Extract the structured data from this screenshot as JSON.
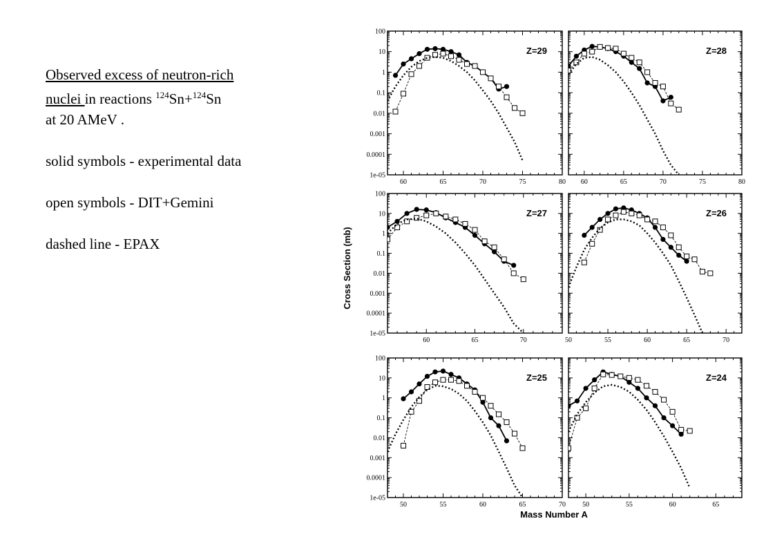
{
  "description": {
    "line1": "Observed excess of neutron-rich",
    "line2_underlined": "nuclei ",
    "line2_rest": " in reactions ",
    "iso1_mass": "124",
    "iso1_sym": "Sn+",
    "iso2_mass": "124",
    "iso2_sym": "Sn",
    "line3": "at 20 AMeV .",
    "solid": "solid symbols - experimental data",
    "open": "open symbols - DIT+Gemini",
    "dashed": "dashed line - EPAX"
  },
  "figure": {
    "ylabel": "Cross Section (mb)",
    "xlabel": "Mass Number A"
  },
  "chart_data": [
    {
      "type": "scatter",
      "label": "Z=29",
      "xlim": [
        58,
        80
      ],
      "xticks": [
        60,
        65,
        70,
        75,
        80
      ],
      "ylim_log10": [
        -5,
        2
      ],
      "yticks": [
        "100",
        "10",
        "1",
        "0.1",
        "0.01",
        "0.001",
        "0.0001",
        "1e-05"
      ],
      "series": [
        {
          "name": "experimental data",
          "style": "solid",
          "x": [
            59,
            60,
            61,
            62,
            63,
            64,
            65,
            66,
            67,
            68,
            69,
            70,
            71,
            72,
            73
          ],
          "y": [
            0.7,
            2.5,
            4.5,
            8,
            13,
            14,
            13,
            10,
            7,
            3,
            2,
            1,
            0.5,
            0.15,
            0.2
          ]
        },
        {
          "name": "DIT+Gemini",
          "style": "open",
          "x": [
            59,
            60,
            61,
            62,
            63,
            64,
            65,
            66,
            67,
            68,
            69,
            70,
            71,
            72,
            73,
            74,
            75
          ],
          "y": [
            0.012,
            0.09,
            0.8,
            2,
            5,
            7,
            8,
            6,
            4,
            2.5,
            2,
            1,
            0.5,
            0.2,
            0.06,
            0.018,
            0.01
          ]
        },
        {
          "name": "EPAX",
          "style": "dashed",
          "x": [
            58,
            59,
            60,
            61,
            62,
            63,
            64,
            65,
            66,
            67,
            68,
            69,
            70,
            71,
            72,
            73,
            74,
            75
          ],
          "y": [
            0.04,
            0.2,
            0.7,
            1.8,
            3.5,
            5,
            5.5,
            5,
            3.5,
            2,
            1,
            0.4,
            0.13,
            0.04,
            0.01,
            0.002,
            0.0004,
            5e-05
          ]
        }
      ]
    },
    {
      "type": "scatter",
      "label": "Z=28",
      "xlim": [
        58,
        80
      ],
      "xticks": [
        60,
        65,
        70,
        75,
        80
      ],
      "ylim_log10": [
        -5,
        2
      ],
      "yticks": [],
      "series": [
        {
          "name": "experimental data",
          "style": "solid",
          "x": [
            58,
            59,
            60,
            61,
            62,
            63,
            64,
            65,
            66,
            67,
            68,
            69,
            70,
            71
          ],
          "y": [
            2,
            6,
            12,
            18,
            17,
            14,
            10,
            6,
            3,
            1.5,
            0.3,
            0.2,
            0.04,
            0.06
          ]
        },
        {
          "name": "DIT+Gemini",
          "style": "open",
          "x": [
            58,
            59,
            60,
            61,
            62,
            63,
            64,
            65,
            66,
            67,
            68,
            69,
            70,
            71,
            72
          ],
          "y": [
            1.2,
            3,
            8,
            10,
            17,
            15,
            14,
            8,
            5,
            3,
            1,
            0.3,
            0.2,
            0.03,
            0.015
          ]
        },
        {
          "name": "EPAX",
          "style": "dashed",
          "x": [
            58,
            59,
            60,
            61,
            62,
            63,
            64,
            65,
            66,
            67,
            68,
            69,
            70,
            71,
            72
          ],
          "y": [
            0.8,
            2.5,
            5,
            5.5,
            4,
            2.2,
            1,
            0.35,
            0.1,
            0.025,
            0.005,
            0.001,
            0.00015,
            3e-05,
            1e-05
          ]
        }
      ]
    },
    {
      "type": "scatter",
      "label": "Z=27",
      "xlim": [
        56,
        74
      ],
      "xticks": [
        60,
        65,
        70
      ],
      "ylim_log10": [
        -5,
        2
      ],
      "yticks": [
        "100",
        "10",
        "1",
        "0.1",
        "0.01",
        "0.001",
        "0.0001",
        "1e-05"
      ],
      "series": [
        {
          "name": "experimental data",
          "style": "solid",
          "x": [
            56,
            57,
            58,
            59,
            60,
            61,
            62,
            63,
            64,
            65,
            66,
            67,
            68,
            69
          ],
          "y": [
            2,
            4,
            10,
            16,
            15,
            11,
            6,
            3.5,
            2,
            0.8,
            0.3,
            0.12,
            0.04,
            0.025
          ]
        },
        {
          "name": "DIT+Gemini",
          "style": "open",
          "x": [
            56,
            57,
            58,
            59,
            60,
            61,
            62,
            63,
            64,
            65,
            66,
            67,
            68,
            69,
            70
          ],
          "y": [
            0.5,
            2,
            4,
            6,
            8,
            10,
            7,
            5,
            3,
            1.5,
            0.4,
            0.2,
            0.05,
            0.01,
            0.005
          ]
        },
        {
          "name": "EPAX",
          "style": "dashed",
          "x": [
            56,
            57,
            58,
            59,
            60,
            61,
            62,
            63,
            64,
            65,
            66,
            67,
            68,
            69,
            70
          ],
          "y": [
            1,
            3,
            5,
            5.5,
            4,
            2.2,
            1,
            0.35,
            0.1,
            0.025,
            0.005,
            0.001,
            0.0002,
            3e-05,
            1e-05
          ]
        }
      ]
    },
    {
      "type": "scatter",
      "label": "Z=26",
      "xlim": [
        50,
        72
      ],
      "xticks": [
        50,
        55,
        60,
        65,
        70
      ],
      "ylim_log10": [
        -5,
        2
      ],
      "yticks": [],
      "series": [
        {
          "name": "experimental data",
          "style": "solid",
          "x": [
            52,
            53,
            54,
            55,
            56,
            57,
            58,
            59,
            60,
            61,
            62,
            63,
            64,
            65
          ],
          "y": [
            0.8,
            2,
            5,
            10,
            17,
            19,
            15,
            10,
            6,
            2,
            0.5,
            0.2,
            0.08,
            0.04
          ]
        },
        {
          "name": "DIT+Gemini",
          "style": "open",
          "x": [
            52,
            53,
            54,
            55,
            56,
            57,
            58,
            59,
            60,
            61,
            62,
            63,
            64,
            65,
            66,
            67,
            68
          ],
          "y": [
            0.035,
            0.3,
            1.5,
            5,
            8,
            12,
            10,
            8,
            5,
            4,
            2,
            0.8,
            0.2,
            0.07,
            0.05,
            0.012,
            0.01
          ]
        },
        {
          "name": "EPAX",
          "style": "dashed",
          "x": [
            50,
            51,
            52,
            53,
            54,
            55,
            56,
            57,
            58,
            59,
            60,
            61,
            62,
            63,
            64,
            65,
            66,
            67
          ],
          "y": [
            0.002,
            0.02,
            0.15,
            0.6,
            1.8,
            3.5,
            5,
            5,
            4,
            2.5,
            1,
            0.35,
            0.1,
            0.025,
            0.004,
            0.0006,
            8e-05,
            1e-05
          ]
        }
      ]
    },
    {
      "type": "scatter",
      "label": "Z=25",
      "xlim": [
        48,
        70
      ],
      "xticks": [
        50,
        55,
        60,
        65,
        70
      ],
      "ylim_log10": [
        -5,
        2
      ],
      "yticks": [
        "100",
        "10",
        "1",
        "0.1",
        "0.01",
        "0.001",
        "0.0001",
        "1e-05"
      ],
      "series": [
        {
          "name": "experimental data",
          "style": "solid",
          "x": [
            50,
            51,
            52,
            53,
            54,
            55,
            56,
            57,
            58,
            59,
            60,
            61,
            62,
            63
          ],
          "y": [
            0.9,
            2,
            5,
            12,
            20,
            22,
            15,
            10,
            5,
            2.5,
            0.6,
            0.1,
            0.04,
            0.007
          ]
        },
        {
          "name": "DIT+Gemini",
          "style": "open",
          "x": [
            50,
            51,
            52,
            53,
            54,
            55,
            56,
            57,
            58,
            59,
            60,
            61,
            62,
            63,
            64,
            65
          ],
          "y": [
            0.004,
            0.2,
            0.7,
            3.5,
            6,
            8,
            8,
            7,
            4,
            2,
            1,
            0.4,
            0.15,
            0.06,
            0.016,
            0.003
          ]
        },
        {
          "name": "EPAX",
          "style": "dashed",
          "x": [
            48,
            49,
            50,
            51,
            52,
            53,
            54,
            55,
            56,
            57,
            58,
            59,
            60,
            61,
            62,
            63,
            64,
            65
          ],
          "y": [
            0.002,
            0.015,
            0.08,
            0.35,
            1.1,
            2.5,
            4,
            3.8,
            2.8,
            1.6,
            0.7,
            0.22,
            0.06,
            0.013,
            0.002,
            0.0003,
            4e-05,
            1e-05
          ]
        }
      ]
    },
    {
      "type": "scatter",
      "label": "Z=24",
      "xlim": [
        48,
        68
      ],
      "xticks": [
        50,
        55,
        60,
        65
      ],
      "ylim_log10": [
        -5,
        2
      ],
      "yticks": [],
      "series": [
        {
          "name": "experimental data",
          "style": "solid",
          "x": [
            48,
            49,
            50,
            51,
            52,
            53,
            54,
            55,
            56,
            57,
            58,
            59,
            60,
            61
          ],
          "y": [
            0.4,
            0.7,
            3,
            8,
            20,
            15,
            12,
            6,
            3,
            1,
            0.4,
            0.1,
            0.04,
            0.015
          ]
        },
        {
          "name": "DIT+Gemini",
          "style": "open",
          "x": [
            48,
            49,
            50,
            51,
            52,
            53,
            54,
            55,
            56,
            57,
            58,
            59,
            60,
            61,
            62
          ],
          "y": [
            0.003,
            0.1,
            0.3,
            3,
            15,
            14,
            12,
            10,
            8,
            4,
            2,
            0.8,
            0.2,
            0.025,
            0.022
          ]
        },
        {
          "name": "EPAX",
          "style": "dashed",
          "x": [
            48,
            49,
            50,
            51,
            52,
            53,
            54,
            55,
            56,
            57,
            58,
            59,
            60,
            61,
            62
          ],
          "y": [
            0.02,
            0.15,
            0.6,
            1.8,
            3.8,
            4.5,
            3.5,
            2,
            0.8,
            0.25,
            0.06,
            0.012,
            0.002,
            0.0003,
            3e-05
          ]
        }
      ]
    }
  ]
}
